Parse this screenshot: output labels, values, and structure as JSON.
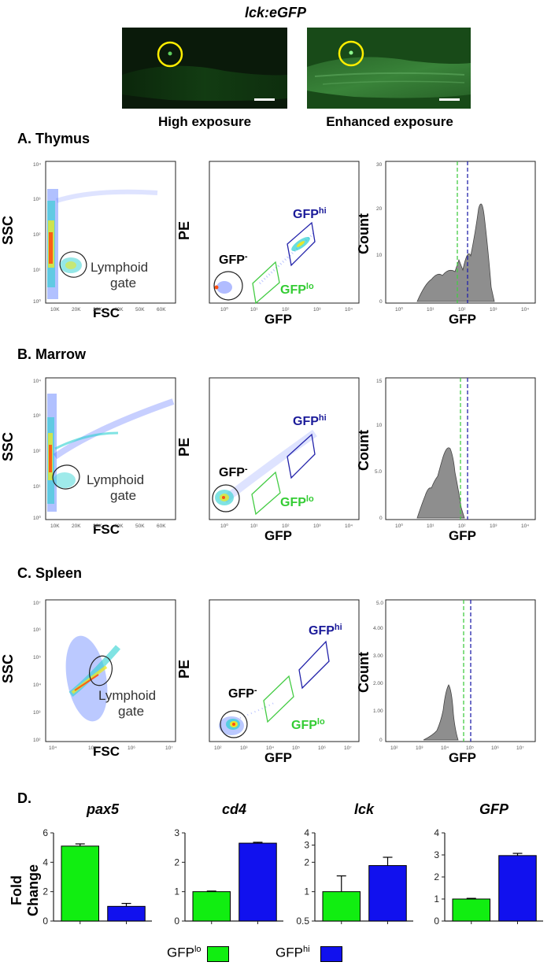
{
  "header": {
    "title": "lck:eGFP",
    "image_left_caption": "High exposure",
    "image_right_caption": "Enhanced exposure"
  },
  "sections": {
    "a": "A. Thymus",
    "b": "B. Marrow",
    "c": "C. Spleen",
    "d": "D."
  },
  "flow": {
    "ssc_label": "SSC",
    "fsc_label": "FSC",
    "pe_label": "PE",
    "gfp_label": "GFP",
    "count_label": "Count",
    "lymphoid_line1": "Lymphoid",
    "lymphoid_line2": "gate",
    "gfp_neg": "GFP",
    "gfp_neg_sup": "-",
    "gfp_hi": "GFP",
    "gfp_hi_sup": "hi",
    "gfp_lo": "GFP",
    "gfp_lo_sup": "lo",
    "fsc_ticks_linear": [
      "10K",
      "20K",
      "30K",
      "40K",
      "50K",
      "60K"
    ],
    "fsc_ticks_log": [
      "10⁴",
      "10⁵",
      "10⁶",
      "10⁷"
    ],
    "log_ticks_thymus": [
      "10⁰",
      "10¹",
      "10²",
      "10³",
      "10⁴"
    ],
    "log_ticks_spleen": [
      "10²",
      "10³",
      "10⁴",
      "10⁵",
      "10⁶",
      "10⁷"
    ],
    "count_ticks_thymus": [
      "0",
      "10",
      "20",
      "30"
    ],
    "count_ticks_marrow": [
      "0",
      "5.0",
      "10",
      "15"
    ],
    "count_ticks_spleen": [
      "0",
      "1.00",
      "2.00",
      "3.00",
      "4.00",
      "5.0"
    ]
  },
  "chart_data": [
    {
      "type": "bar",
      "title": "pax5",
      "ylabel": "Fold Change",
      "categories": [
        "GFPlo",
        "GFPhi"
      ],
      "values": [
        5.1,
        1.0
      ],
      "errors": [
        0.15,
        0.2
      ],
      "ylim": [
        0,
        6
      ],
      "yticks": [
        0,
        2,
        4,
        6
      ],
      "colors": [
        "#11ee11",
        "#1111ee"
      ]
    },
    {
      "type": "bar",
      "title": "cd4",
      "ylabel": "",
      "categories": [
        "GFPlo",
        "GFPhi"
      ],
      "values": [
        1.0,
        2.65
      ],
      "errors": [
        0.02,
        0.03
      ],
      "ylim": [
        0,
        3
      ],
      "yticks": [
        0,
        1,
        2,
        3
      ],
      "colors": [
        "#11ee11",
        "#1111ee"
      ]
    },
    {
      "type": "bar",
      "title": "lck",
      "ylabel": "",
      "categories": [
        "GFPlo",
        "GFPhi"
      ],
      "values": [
        1.0,
        1.85
      ],
      "errors": [
        0.45,
        0.4
      ],
      "ylim": [
        0.5,
        4
      ],
      "yticks": [
        0.5,
        1,
        2,
        3,
        4
      ],
      "ytick_labels": [
        "0.5",
        "1",
        "2",
        "3",
        "4"
      ],
      "scale": "log",
      "colors": [
        "#11ee11",
        "#1111ee"
      ]
    },
    {
      "type": "bar",
      "title": "GFP",
      "ylabel": "",
      "categories": [
        "GFPlo",
        "GFPhi"
      ],
      "values": [
        1.0,
        2.97
      ],
      "errors": [
        0.03,
        0.1
      ],
      "ylim": [
        0,
        4
      ],
      "yticks": [
        0,
        1,
        2,
        3,
        4
      ],
      "colors": [
        "#11ee11",
        "#1111ee"
      ]
    }
  ],
  "legend": {
    "lo_text": "GFP",
    "lo_sup": "lo",
    "hi_text": "GFP",
    "hi_sup": "hi",
    "lo_color": "#11ee11",
    "hi_color": "#1111ee"
  }
}
